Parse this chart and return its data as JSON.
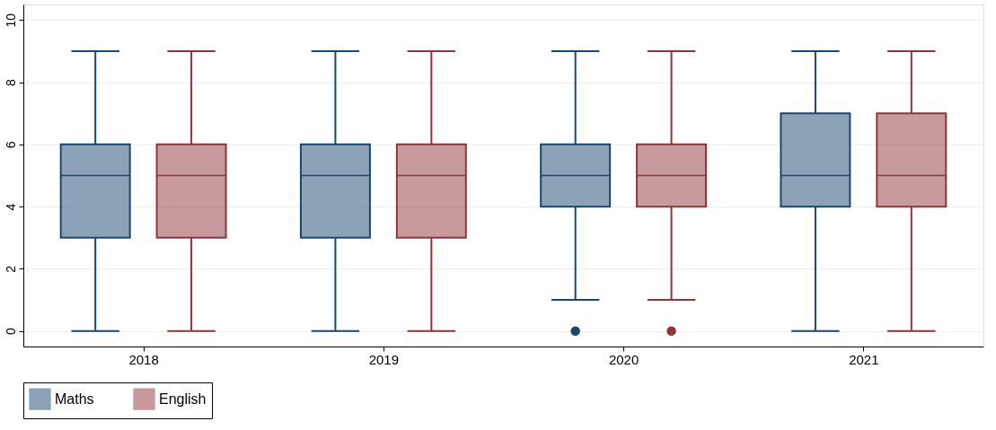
{
  "chart_data": {
    "type": "box",
    "categories": [
      "2018",
      "2019",
      "2020",
      "2021"
    ],
    "series": [
      {
        "name": "Maths",
        "color": "#1a476f",
        "boxes": [
          {
            "low": 0,
            "q1": 3,
            "median": 5,
            "q3": 6,
            "high": 9
          },
          {
            "low": 0,
            "q1": 3,
            "median": 5,
            "q3": 6,
            "high": 9
          },
          {
            "low": 1,
            "q1": 4,
            "median": 5,
            "q3": 6,
            "high": 9,
            "outliers": [
              0
            ]
          },
          {
            "low": 0,
            "q1": 4,
            "median": 5,
            "q3": 7,
            "high": 9
          }
        ]
      },
      {
        "name": "English",
        "color": "#90353b",
        "boxes": [
          {
            "low": 0,
            "q1": 3,
            "median": 5,
            "q3": 6,
            "high": 9
          },
          {
            "low": 0,
            "q1": 3,
            "median": 5,
            "q3": 6,
            "high": 9
          },
          {
            "low": 1,
            "q1": 4,
            "median": 5,
            "q3": 6,
            "high": 9,
            "outliers": [
              0
            ]
          },
          {
            "low": 0,
            "q1": 4,
            "median": 5,
            "q3": 7,
            "high": 9
          }
        ]
      }
    ],
    "ylim": [
      -0.5,
      10.5
    ],
    "yticks": [
      0,
      2,
      4,
      6,
      8,
      10
    ],
    "grid": "y",
    "legend": "bottom"
  }
}
